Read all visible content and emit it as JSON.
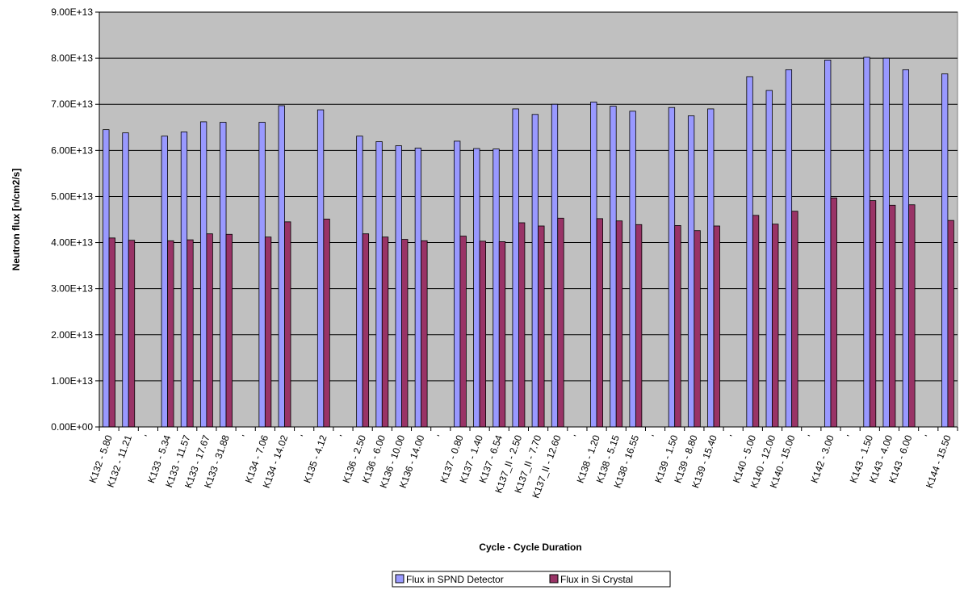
{
  "chart_data": {
    "type": "bar",
    "title": "",
    "xlabel": "Cycle - Cycle Duration",
    "ylabel": "Neutron flux [n/cm2/s]",
    "ylim": [
      0,
      90000000000000.0
    ],
    "ytick_labels": [
      "0.00E+00",
      "1.00E+13",
      "2.00E+13",
      "3.00E+13",
      "4.00E+13",
      "5.00E+13",
      "6.00E+13",
      "7.00E+13",
      "8.00E+13",
      "9.00E+13"
    ],
    "grid": true,
    "legend_position": "bottom",
    "categories": [
      "K132 - 5.80",
      "K132 - 11.21",
      "'",
      "K133 - 5.34",
      "K133 - 11.57",
      "K133 - 17.67",
      "K133 - 31.88",
      "'",
      "K134 - 7.06",
      "K134 - 14.02",
      "'",
      "K135 - 4.12",
      "'",
      "K136 - 2.50",
      "K136 - 6.00",
      "K136 - 10.00",
      "K136 - 14.00",
      "'",
      "K137 - 0.80",
      "K137 - 1.40",
      "K137 - 6.54",
      "K137_II - 2.50",
      "K137_II - 7.70",
      "K137_II - 12.60",
      "'",
      "K138 - 1.20",
      "K138 - 5.15",
      "K138 - 16.55",
      "'",
      "K139 - 1.50",
      "K139 - 8.80",
      "K139 - 15.40",
      "'",
      "K140 - 5.00",
      "K140 - 12.00",
      "K140 - 15.00",
      "'",
      "K142 - 3.00",
      "'",
      "K143 - 1.50",
      "K143 - 4.00",
      "K143 - 6.00",
      "'",
      "K144 - 15.50"
    ],
    "series": [
      {
        "name": "Flux in SPND Detector",
        "color": "#9999ff",
        "values": [
          64500000000000.0,
          63800000000000.0,
          null,
          63100000000000.0,
          64000000000000.0,
          66200000000000.0,
          66100000000000.0,
          null,
          66100000000000.0,
          69700000000000.0,
          null,
          68800000000000.0,
          null,
          63100000000000.0,
          61900000000000.0,
          61000000000000.0,
          60500000000000.0,
          null,
          62000000000000.0,
          60400000000000.0,
          60300000000000.0,
          69000000000000.0,
          67800000000000.0,
          70000000000000.0,
          null,
          70500000000000.0,
          69600000000000.0,
          68500000000000.0,
          null,
          69300000000000.0,
          67500000000000.0,
          69000000000000.0,
          null,
          76000000000000.0,
          73000000000000.0,
          77500000000000.0,
          null,
          79600000000000.0,
          null,
          80200000000000.0,
          80000000000000.0,
          77500000000000.0,
          null,
          76600000000000.0
        ]
      },
      {
        "name": "Flux in Si Crystal",
        "color": "#993366",
        "values": [
          41000000000000.0,
          40500000000000.0,
          null,
          40400000000000.0,
          40600000000000.0,
          41900000000000.0,
          41800000000000.0,
          null,
          41200000000000.0,
          44500000000000.0,
          null,
          45100000000000.0,
          null,
          41900000000000.0,
          41200000000000.0,
          40700000000000.0,
          40400000000000.0,
          null,
          41400000000000.0,
          40300000000000.0,
          40200000000000.0,
          44300000000000.0,
          43600000000000.0,
          45300000000000.0,
          null,
          45200000000000.0,
          44700000000000.0,
          43900000000000.0,
          null,
          43700000000000.0,
          42600000000000.0,
          43600000000000.0,
          null,
          45900000000000.0,
          44000000000000.0,
          46800000000000.0,
          null,
          49700000000000.0,
          null,
          49100000000000.0,
          48100000000000.0,
          48200000000000.0,
          null,
          44800000000000.0
        ]
      }
    ]
  },
  "colors": {
    "plot_background": "#c0c0c0",
    "gridline": "#000000"
  }
}
